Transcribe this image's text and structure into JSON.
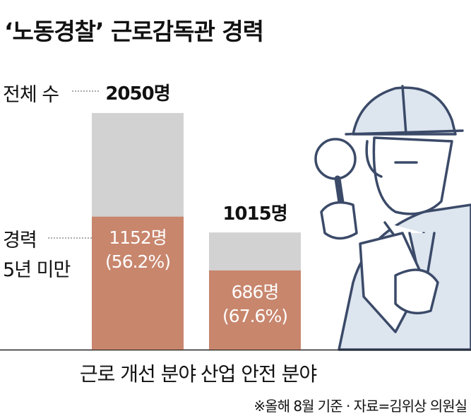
{
  "title": "‘노동경찰’ 근로감독관 경력",
  "chart_data": {
    "type": "bar",
    "stacked": true,
    "title": "‘노동경찰’ 근로감독관 경력",
    "categories": [
      "근로 개선 분야",
      "산업 안전 분야"
    ],
    "series": [
      {
        "name": "경력 5년 미만",
        "values": [
          1152,
          686
        ],
        "percent_labels": [
          "(56.2%)",
          "(67.6%)"
        ],
        "value_labels": [
          "1152명",
          "686명"
        ],
        "color": "#c8866d"
      },
      {
        "name": "전체 수",
        "totals": [
          2050,
          1015
        ],
        "total_labels": [
          "2050명",
          "1015명"
        ],
        "color": "#d2d2d2"
      }
    ],
    "legend": {
      "total": "전체 수",
      "under5_line1": "경력",
      "under5_line2": "5년 미만"
    },
    "ylim": [
      0,
      2050
    ],
    "grid": false
  },
  "note": "※올해 8월 기준 · 자료=김위상 의원실",
  "illustration": "inspector-with-magnifier-icon"
}
